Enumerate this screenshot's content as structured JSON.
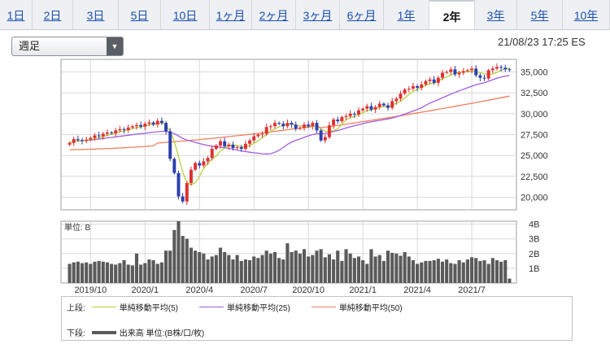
{
  "tabs": [
    {
      "label": "1日",
      "active": false
    },
    {
      "label": "2日",
      "active": false
    },
    {
      "label": "3日",
      "active": false
    },
    {
      "label": "5日",
      "active": false
    },
    {
      "label": "10日",
      "active": false
    },
    {
      "label": "1ヶ月",
      "active": false
    },
    {
      "label": "2ヶ月",
      "active": false
    },
    {
      "label": "3ヶ月",
      "active": false
    },
    {
      "label": "6ヶ月",
      "active": false
    },
    {
      "label": "1年",
      "active": false
    },
    {
      "label": "2年",
      "active": true
    },
    {
      "label": "3年",
      "active": false
    },
    {
      "label": "5年",
      "active": false
    },
    {
      "label": "10年",
      "active": false
    }
  ],
  "period_select": {
    "value": "週足"
  },
  "timestamp": "21/08/23 17:25 ES",
  "colors": {
    "up": "#e03030",
    "down": "#2c3fae",
    "ma5": "#b8d23a",
    "ma25": "#a05ce0",
    "ma50": "#f08060",
    "volume": "#5a5a5a",
    "grid": "#d8d8d8"
  },
  "legend": {
    "upper_label": "上段:",
    "lower_label": "下段:",
    "items": [
      {
        "name": "単純移動平均(5)",
        "color": "#b8d23a"
      },
      {
        "name": "単純移動平均(25)",
        "color": "#a05ce0"
      },
      {
        "name": "単純移動平均(50)",
        "color": "#f08060"
      }
    ],
    "volume_item": "出来高 単位:(B株/口/枚)"
  },
  "chart_data": [
    {
      "type": "candlestick",
      "ylim": [
        18500,
        36500
      ],
      "y_ticks": [
        {
          "v": 35000,
          "label": "35,000"
        },
        {
          "v": 32500,
          "label": "32,500"
        },
        {
          "v": 30000,
          "label": "30,000"
        },
        {
          "v": 27500,
          "label": "27,500"
        },
        {
          "v": 25000,
          "label": "25,000"
        },
        {
          "v": 22500,
          "label": "22,500"
        },
        {
          "v": 20000,
          "label": "20,000"
        }
      ],
      "x_range": [
        0,
        107
      ],
      "close": [
        26500,
        26950,
        26850,
        26750,
        26900,
        27100,
        27400,
        27300,
        27600,
        27750,
        27650,
        28000,
        28150,
        28050,
        28350,
        28500,
        28650,
        28450,
        28800,
        28950,
        28700,
        29150,
        28900,
        27900,
        24600,
        22900,
        20100,
        19500,
        21700,
        23300,
        24100,
        23800,
        24300,
        24700,
        25800,
        26200,
        26700,
        26100,
        26300,
        25900,
        26000,
        25800,
        26400,
        26800,
        27300,
        27500,
        27600,
        28400,
        28500,
        28900,
        28800,
        28500,
        28900,
        28700,
        28200,
        28300,
        28700,
        28500,
        28900,
        28000,
        26800,
        27200,
        28600,
        29300,
        29100,
        29600,
        29700,
        30000,
        29900,
        30400,
        30600,
        30900,
        30500,
        30800,
        31200,
        31000,
        30700,
        31500,
        31800,
        32400,
        32900,
        33000,
        33300,
        33100,
        33500,
        33900,
        34100,
        33700,
        34300,
        34900,
        35000,
        35300,
        34700,
        34900,
        35100,
        35200,
        35400,
        34600,
        34300,
        34200,
        35200,
        35400,
        35600,
        35500,
        35300,
        35200
      ],
      "ma25_endpoints": {
        "start": 26300,
        "min": 24800,
        "end": 34300
      },
      "ma50_endpoints": {
        "start": 25700,
        "end": 32100
      }
    },
    {
      "type": "bar",
      "unit_label": "単位: B",
      "ylim": [
        0,
        4.2
      ],
      "y_ticks": [
        {
          "v": 4,
          "label": "4B"
        },
        {
          "v": 3,
          "label": "3B"
        },
        {
          "v": 2,
          "label": "2B"
        },
        {
          "v": 1,
          "label": "1B"
        }
      ],
      "x_ticks": [
        "2019/10",
        "2020/1",
        "2020/4",
        "2020/7",
        "2020/10",
        "2021/1",
        "2021/4",
        "2021/7"
      ],
      "values": [
        1.3,
        1.4,
        1.45,
        1.35,
        1.4,
        1.3,
        1.45,
        1.5,
        1.45,
        1.4,
        1.3,
        1.25,
        1.35,
        1.55,
        1.25,
        1.2,
        2.0,
        1.25,
        1.35,
        1.6,
        1.55,
        1.3,
        1.4,
        2.2,
        2.2,
        3.6,
        4.2,
        3.2,
        3.0,
        2.4,
        2.2,
        2.1,
        2.0,
        1.6,
        1.8,
        1.9,
        2.4,
        2.1,
        1.9,
        1.6,
        1.9,
        1.5,
        1.6,
        1.55,
        1.8,
        1.7,
        1.9,
        2.2,
        2.0,
        2.1,
        1.7,
        1.6,
        2.7,
        2.1,
        2.2,
        2.0,
        2.3,
        1.8,
        1.9,
        2.2,
        2.3,
        1.75,
        1.95,
        1.6,
        2.2,
        1.5,
        2.3,
        2.0,
        1.7,
        1.8,
        1.55,
        1.3,
        2.3,
        1.8,
        1.9,
        1.5,
        2.2,
        2.05,
        2.0,
        1.85,
        2.1,
        1.8,
        1.55,
        1.3,
        1.4,
        1.5,
        1.5,
        1.55,
        1.65,
        1.45,
        1.6,
        1.35,
        1.3,
        1.55,
        1.4,
        1.6,
        1.75,
        1.7,
        1.5,
        1.55,
        1.3,
        1.7,
        1.55,
        1.45,
        1.55,
        0.3
      ]
    }
  ]
}
